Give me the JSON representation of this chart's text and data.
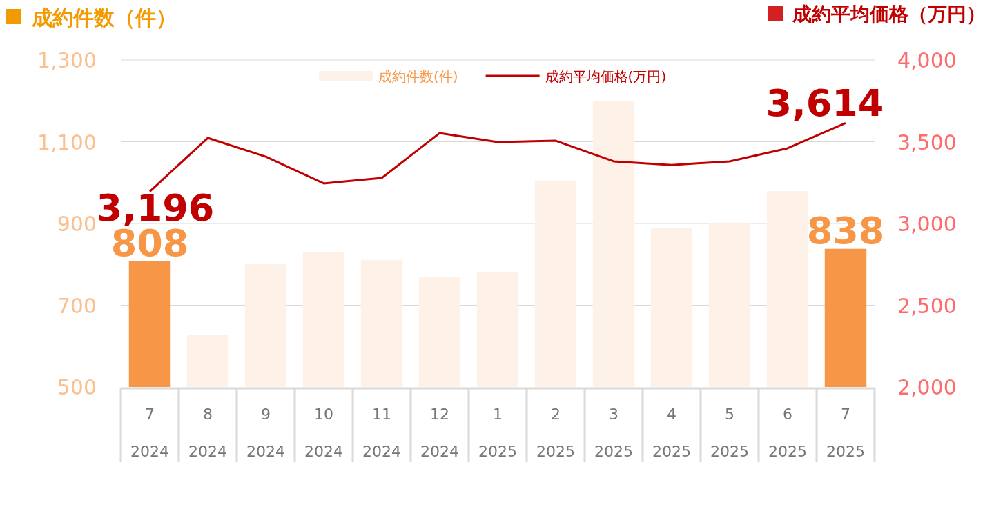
{
  "chart_data": {
    "type": "bar",
    "ylabel": "成約件数（件）",
    "y2label": "成約平均価格（万円）",
    "categories": [
      "7\n2024",
      "8\n2024",
      "9\n2024",
      "10\n2024",
      "11\n2024",
      "12\n2024",
      "1\n2025",
      "2\n2025",
      "3\n2025",
      "4\n2025",
      "5\n2025",
      "6\n2025",
      "7\n2025"
    ],
    "series": [
      {
        "name": "成約件数(件)",
        "colors": [
          "#f79646",
          "#fdf1e8",
          "#fdf1e8",
          "#fdf1e8",
          "#fdf1e8",
          "#fdf1e8",
          "#fdf1e8",
          "#fdf1e8",
          "#fdf1e8",
          "#fdf1e8",
          "#fdf1e8",
          "#fdf1e8",
          "#f79646"
        ],
        "values": [
          808,
          627,
          800,
          831,
          811,
          770,
          780,
          1005,
          1200,
          888,
          902,
          979,
          838
        ],
        "value_labels": [
          "808",
          null,
          null,
          null,
          null,
          null,
          null,
          null,
          null,
          null,
          null,
          null,
          "838"
        ]
      },
      {
        "name": "成約平均価格(万円)",
        "type": "line",
        "axis": "y2",
        "color": "#c00000",
        "values": [
          3196,
          3523,
          3409,
          3245,
          3278,
          3553,
          3498,
          3506,
          3380,
          3358,
          3380,
          3460,
          3614
        ],
        "value_labels": [
          "3,196",
          null,
          null,
          null,
          null,
          null,
          null,
          null,
          null,
          null,
          null,
          null,
          "3,614"
        ]
      }
    ],
    "ylim": [
      500,
      1300
    ],
    "yticks": [
      500,
      700,
      900,
      {
        "value": 1100,
        "label": "1,100"
      },
      {
        "value": 1300,
        "label": "1,300"
      }
    ],
    "y2lim": [
      2000,
      4000
    ],
    "y2ticks": [
      {
        "value": 2000,
        "label": "2,000"
      },
      {
        "value": 2500,
        "label": "2,500"
      },
      {
        "value": 3000,
        "label": "3,000"
      },
      {
        "value": 3500,
        "label": "3,500"
      },
      {
        "value": 4000,
        "label": "4,000"
      }
    ],
    "grid": "y",
    "legend": "top",
    "marker": "none",
    "line_style": "solid"
  }
}
